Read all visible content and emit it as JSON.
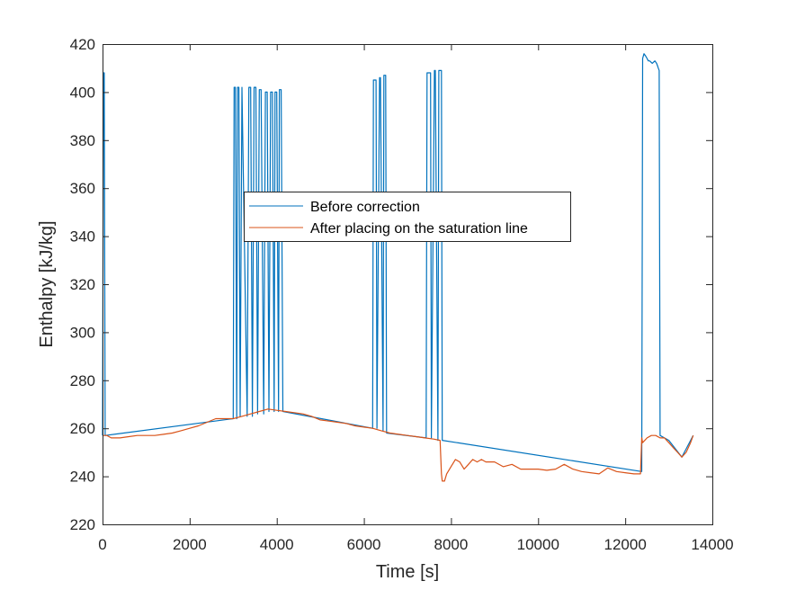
{
  "chart_data": {
    "type": "line",
    "title": "",
    "xlabel": "Time [s]",
    "ylabel": "Enthalpy [kJ/kg]",
    "xlim": [
      0,
      14000
    ],
    "ylim": [
      220,
      420
    ],
    "xticks": [
      0,
      2000,
      4000,
      6000,
      8000,
      10000,
      12000,
      14000
    ],
    "yticks": [
      220,
      240,
      260,
      280,
      300,
      320,
      340,
      360,
      380,
      400,
      420
    ],
    "xtick_labels": [
      "0",
      "2000",
      "4000",
      "6000",
      "8000",
      "10000",
      "12000",
      "14000"
    ],
    "ytick_labels": [
      "220",
      "240",
      "260",
      "280",
      "300",
      "320",
      "340",
      "360",
      "380",
      "400",
      "420"
    ],
    "grid": false,
    "legend_position": "center",
    "series": [
      {
        "name": "Before correction",
        "color": "#0072BD",
        "x": [
          0,
          20,
          40,
          60,
          3000,
          3020,
          3050,
          3080,
          3100,
          3130,
          3160,
          3200,
          3320,
          3360,
          3400,
          3440,
          3480,
          3520,
          3560,
          3600,
          3640,
          3700,
          3740,
          3780,
          3820,
          3860,
          3900,
          3940,
          3960,
          4000,
          4040,
          4060,
          4100,
          4140,
          6200,
          6220,
          6280,
          6300,
          6360,
          6380,
          6440,
          6460,
          6500,
          6520,
          7430,
          7450,
          7530,
          7550,
          7620,
          7640,
          7700,
          7720,
          7780,
          7800,
          12380,
          12400,
          12430,
          12470,
          12500,
          12530,
          12560,
          12620,
          12680,
          12720,
          12740,
          12760,
          12780,
          12800,
          13000,
          13300,
          13560
        ],
        "y": [
          257,
          408,
          408,
          257,
          264,
          402,
          402,
          264,
          402,
          402,
          265,
          402,
          265,
          402,
          402,
          265,
          402,
          402,
          266,
          401,
          401,
          266,
          400,
          400,
          267,
          400,
          400,
          267,
          400,
          400,
          267,
          401,
          401,
          267,
          260,
          405,
          405,
          260,
          406,
          406,
          259,
          407,
          407,
          258,
          256,
          408,
          408,
          256,
          409,
          409,
          255,
          409,
          409,
          255,
          242,
          414,
          416,
          415,
          414,
          413,
          413,
          412,
          413,
          412,
          411,
          410,
          409,
          257,
          255,
          248,
          257
        ]
      },
      {
        "name": "After placing on the saturation line",
        "color": "#D95319",
        "x": [
          0,
          100,
          200,
          300,
          400,
          600,
          800,
          1000,
          1200,
          1400,
          1600,
          1800,
          2000,
          2200,
          2400,
          2600,
          2800,
          3000,
          3200,
          3400,
          3600,
          3800,
          4000,
          4200,
          4400,
          4600,
          4800,
          5000,
          5200,
          5400,
          5600,
          5800,
          6000,
          6200,
          6400,
          6600,
          6800,
          7000,
          7200,
          7400,
          7600,
          7750,
          7780,
          7800,
          7850,
          7900,
          8000,
          8100,
          8200,
          8300,
          8400,
          8500,
          8600,
          8700,
          8800,
          9000,
          9200,
          9400,
          9600,
          9800,
          10000,
          10200,
          10400,
          10600,
          10800,
          11000,
          11200,
          11400,
          11600,
          11800,
          12000,
          12200,
          12350,
          12380,
          12400,
          12500,
          12600,
          12700,
          12800,
          12900,
          13000,
          13100,
          13200,
          13300,
          13400,
          13500,
          13560
        ],
        "y": [
          257,
          257,
          256,
          256,
          256,
          256.5,
          257,
          257,
          257,
          257.5,
          258,
          259,
          260,
          261,
          262.5,
          264,
          264,
          264,
          265,
          266,
          267,
          268,
          267.5,
          267,
          266.5,
          266,
          265,
          263.5,
          263,
          262.5,
          262,
          261,
          260.5,
          260,
          259,
          258,
          257.5,
          257,
          256.5,
          256,
          255.5,
          255,
          241,
          238,
          238,
          241,
          244,
          247,
          246,
          243,
          245,
          247,
          246,
          247,
          246,
          246,
          244,
          245,
          243,
          243,
          243,
          242.5,
          243,
          245,
          243,
          242,
          241.5,
          241,
          243.5,
          242,
          241.5,
          241,
          241,
          256,
          254,
          256,
          257,
          257,
          256,
          256,
          254,
          252,
          250,
          248,
          250,
          254,
          257
        ]
      }
    ]
  }
}
